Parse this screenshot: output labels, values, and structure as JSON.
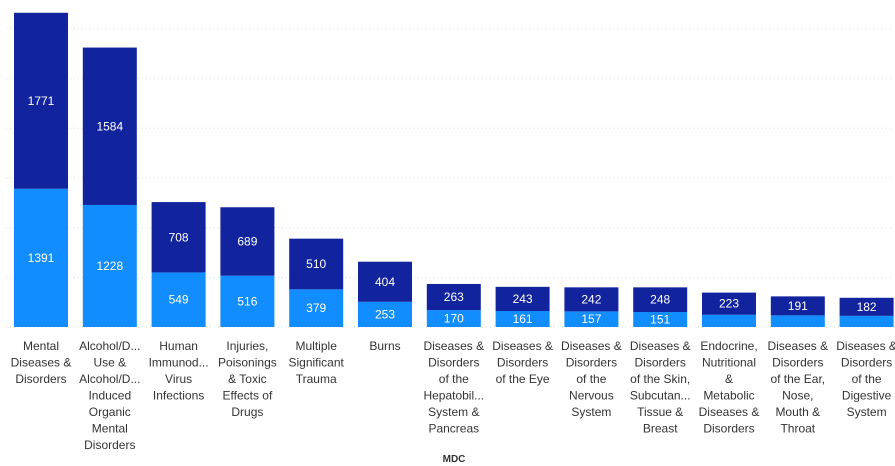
{
  "chart_data": {
    "type": "bar",
    "stacked": true,
    "xlabel": "MDC",
    "ylabel": "",
    "ylim": [
      0,
      3200
    ],
    "grid": true,
    "categories": [
      [
        "Mental",
        "Diseases &",
        "Disorders"
      ],
      [
        "Alcohol/D...",
        "Use &",
        "Alcohol/D...",
        "Induced",
        "Organic",
        "Mental",
        "Disorders"
      ],
      [
        "Human",
        "Immunod...",
        "Virus",
        "Infections"
      ],
      [
        "Injuries,",
        "Poisonings",
        "& Toxic",
        "Effects of",
        "Drugs"
      ],
      [
        "Multiple",
        "Significant",
        "Trauma"
      ],
      [
        "Burns"
      ],
      [
        "Diseases &",
        "Disorders",
        "of the",
        "Hepatobil...",
        "System &",
        "Pancreas"
      ],
      [
        "Diseases &",
        "Disorders",
        "of the Eye"
      ],
      [
        "Diseases &",
        "Disorders",
        "of the",
        "Nervous",
        "System"
      ],
      [
        "Diseases &",
        "Disorders",
        "of the Skin,",
        "Subcutan...",
        "Tissue &",
        "Breast"
      ],
      [
        "Endocrine,",
        "Nutritional",
        "&",
        "Metabolic",
        "Diseases &",
        "Disorders"
      ],
      [
        "Diseases &",
        "Disorders",
        "of the Ear,",
        "Nose,",
        "Mouth &",
        "Throat"
      ],
      [
        "Diseases &",
        "Disorders",
        "of the",
        "Digestive",
        "System"
      ]
    ],
    "series": [
      {
        "values": [
          1391,
          1228,
          549,
          516,
          379,
          253,
          170,
          161,
          157,
          151,
          123,
          117,
          112
        ],
        "labels": [
          "1391",
          "1228",
          "549",
          "516",
          "379",
          "253",
          "170",
          "161",
          "157",
          "151",
          "",
          "",
          ""
        ],
        "color": "#118dff"
      },
      {
        "values": [
          1771,
          1584,
          708,
          689,
          510,
          404,
          263,
          243,
          242,
          248,
          223,
          191,
          182
        ],
        "labels": [
          "1771",
          "1584",
          "708",
          "689",
          "510",
          "404",
          "263",
          "243",
          "242",
          "248",
          "223",
          "191",
          "182"
        ],
        "color": "#12239e"
      }
    ]
  }
}
